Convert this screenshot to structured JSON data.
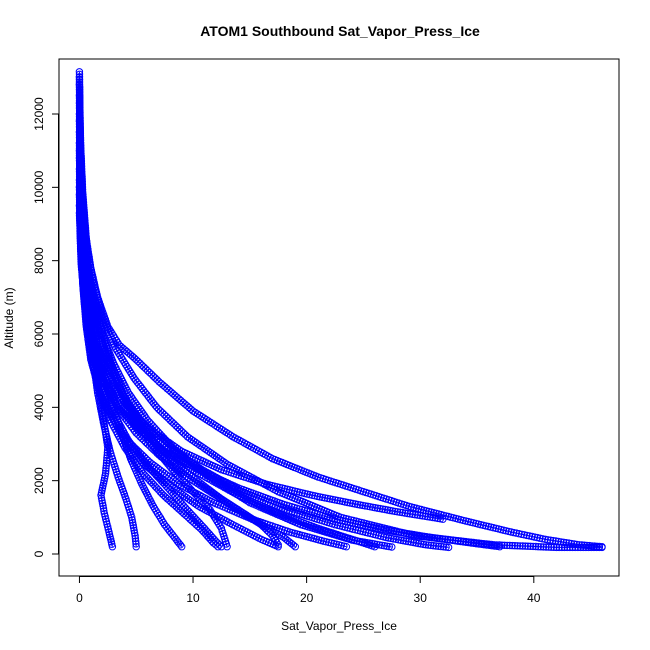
{
  "chart_data": {
    "type": "scatter",
    "title": "ATOM1 Southbound Sat_Vapor_Press_Ice",
    "xlabel": "Sat_Vapor_Press_Ice",
    "ylabel": "Altitude (m)",
    "xlim": [
      -1.8,
      47.5
    ],
    "ylim": [
      -600,
      13500
    ],
    "xticks": [
      0,
      10,
      20,
      30,
      40
    ],
    "yticks": [
      0,
      2000,
      4000,
      6000,
      8000,
      10000,
      12000
    ],
    "grid": false,
    "marker": "open-circle",
    "color": "#0000ff",
    "series": [
      {
        "points": [
          [
            0.0,
            13150
          ],
          [
            0.02,
            12400
          ],
          [
            0.05,
            11400
          ],
          [
            0.12,
            10200
          ],
          [
            0.25,
            9200
          ],
          [
            0.45,
            8300
          ],
          [
            0.8,
            7500
          ],
          [
            1.3,
            6800
          ],
          [
            2.0,
            6000
          ],
          [
            3.0,
            5200
          ],
          [
            4.3,
            4400
          ],
          [
            6.0,
            3650
          ],
          [
            8.2,
            2900
          ],
          [
            11.2,
            2150
          ],
          [
            15.0,
            1400
          ],
          [
            19.5,
            800
          ],
          [
            24.0,
            380
          ],
          [
            27.5,
            190
          ]
        ]
      },
      {
        "points": [
          [
            0.0,
            13000
          ],
          [
            0.05,
            11800
          ],
          [
            0.15,
            10500
          ],
          [
            0.35,
            9300
          ],
          [
            0.7,
            8300
          ],
          [
            1.2,
            7400
          ],
          [
            2.0,
            6500
          ],
          [
            3.2,
            5600
          ],
          [
            4.8,
            4800
          ],
          [
            6.8,
            4000
          ],
          [
            9.5,
            3200
          ],
          [
            13.0,
            2450
          ],
          [
            17.5,
            1700
          ],
          [
            23.0,
            1000
          ],
          [
            29.5,
            500
          ],
          [
            36.5,
            250
          ],
          [
            42.0,
            180
          ],
          [
            46.0,
            180
          ]
        ]
      },
      {
        "points": [
          [
            0.0,
            12800
          ],
          [
            0.1,
            11200
          ],
          [
            0.3,
            9800
          ],
          [
            0.6,
            8600
          ],
          [
            1.0,
            7800
          ],
          [
            1.6,
            7000
          ],
          [
            2.5,
            6200
          ],
          [
            3.5,
            5700
          ],
          [
            5.0,
            5300
          ],
          [
            7.0,
            4700
          ],
          [
            10.0,
            3900
          ],
          [
            13.5,
            3200
          ],
          [
            17.0,
            2600
          ],
          [
            21.0,
            2100
          ],
          [
            25.0,
            1700
          ],
          [
            29.0,
            1300
          ],
          [
            34.0,
            900
          ],
          [
            38.0,
            600
          ],
          [
            41.0,
            400
          ],
          [
            44.0,
            250
          ],
          [
            46.0,
            200
          ]
        ]
      },
      {
        "points": [
          [
            0.0,
            12500
          ],
          [
            0.1,
            10800
          ],
          [
            0.3,
            9400
          ],
          [
            0.6,
            8200
          ],
          [
            1.0,
            7200
          ],
          [
            1.6,
            6300
          ],
          [
            2.4,
            5400
          ],
          [
            3.4,
            4600
          ],
          [
            4.7,
            3800
          ],
          [
            6.3,
            3000
          ],
          [
            8.2,
            2300
          ],
          [
            10.0,
            1700
          ],
          [
            11.5,
            1200
          ],
          [
            12.5,
            700
          ],
          [
            13.0,
            200
          ]
        ]
      },
      {
        "points": [
          [
            0.0,
            12300
          ],
          [
            0.08,
            11000
          ],
          [
            0.25,
            9600
          ],
          [
            0.55,
            8500
          ],
          [
            0.9,
            7600
          ],
          [
            1.4,
            6800
          ],
          [
            2.0,
            6000
          ],
          [
            2.8,
            5200
          ],
          [
            3.8,
            4400
          ],
          [
            5.2,
            3600
          ],
          [
            7.0,
            2900
          ],
          [
            9.5,
            2200
          ],
          [
            12.5,
            1500
          ],
          [
            15.5,
            900
          ],
          [
            18.0,
            450
          ],
          [
            19.0,
            200
          ]
        ]
      },
      {
        "points": [
          [
            0.0,
            12000
          ],
          [
            0.1,
            10400
          ],
          [
            0.3,
            9000
          ],
          [
            0.6,
            7800
          ],
          [
            1.0,
            6800
          ],
          [
            1.5,
            5800
          ],
          [
            2.1,
            5000
          ],
          [
            2.8,
            4200
          ],
          [
            3.6,
            3400
          ],
          [
            4.5,
            2600
          ],
          [
            5.5,
            1900
          ],
          [
            6.5,
            1300
          ],
          [
            7.5,
            800
          ],
          [
            8.5,
            400
          ],
          [
            9.0,
            200
          ]
        ]
      },
      {
        "points": [
          [
            0.0,
            11800
          ],
          [
            0.1,
            10000
          ],
          [
            0.3,
            8600
          ],
          [
            0.6,
            7400
          ],
          [
            0.9,
            6400
          ],
          [
            1.3,
            5400
          ],
          [
            1.7,
            4500
          ],
          [
            2.1,
            3700
          ],
          [
            2.5,
            2900
          ],
          [
            2.3,
            2200
          ],
          [
            1.9,
            1600
          ],
          [
            2.2,
            1100
          ],
          [
            2.6,
            600
          ],
          [
            2.9,
            200
          ]
        ]
      },
      {
        "points": [
          [
            0.0,
            11500
          ],
          [
            0.1,
            9800
          ],
          [
            0.3,
            8400
          ],
          [
            0.55,
            7200
          ],
          [
            0.85,
            6200
          ],
          [
            1.2,
            5300
          ],
          [
            1.6,
            4400
          ],
          [
            2.1,
            3600
          ],
          [
            2.7,
            2800
          ],
          [
            3.4,
            2100
          ],
          [
            4.1,
            1500
          ],
          [
            4.6,
            1000
          ],
          [
            4.9,
            500
          ],
          [
            5.0,
            200
          ]
        ]
      },
      {
        "points": [
          [
            0.0,
            11200
          ],
          [
            0.1,
            9600
          ],
          [
            0.3,
            8200
          ],
          [
            0.6,
            7000
          ],
          [
            1.0,
            5900
          ],
          [
            1.6,
            4900
          ],
          [
            2.5,
            4000
          ],
          [
            3.8,
            3200
          ],
          [
            5.5,
            2500
          ],
          [
            7.8,
            1900
          ],
          [
            10.5,
            1300
          ],
          [
            13.5,
            800
          ],
          [
            16.0,
            400
          ],
          [
            17.5,
            200
          ]
        ]
      },
      {
        "points": [
          [
            0.0,
            11000
          ],
          [
            0.1,
            9400
          ],
          [
            0.3,
            8000
          ],
          [
            0.7,
            6800
          ],
          [
            1.2,
            5800
          ],
          [
            2.0,
            5000
          ],
          [
            3.2,
            4200
          ],
          [
            5.0,
            3500
          ],
          [
            7.5,
            2800
          ],
          [
            10.5,
            2200
          ],
          [
            14.0,
            1600
          ],
          [
            17.5,
            1100
          ],
          [
            21.0,
            700
          ],
          [
            24.0,
            400
          ],
          [
            26.0,
            200
          ]
        ]
      },
      {
        "points": [
          [
            0.0,
            10800
          ],
          [
            0.15,
            9200
          ],
          [
            0.4,
            7900
          ],
          [
            0.8,
            6800
          ],
          [
            1.4,
            5900
          ],
          [
            2.3,
            5100
          ],
          [
            3.6,
            4300
          ],
          [
            5.4,
            3600
          ],
          [
            7.8,
            2900
          ],
          [
            10.8,
            2300
          ],
          [
            14.3,
            1700
          ],
          [
            18.3,
            1200
          ],
          [
            22.5,
            800
          ],
          [
            27.0,
            450
          ],
          [
            30.5,
            250
          ],
          [
            32.5,
            180
          ]
        ]
      },
      {
        "points": [
          [
            0.0,
            10500
          ],
          [
            0.12,
            9000
          ],
          [
            0.35,
            7700
          ],
          [
            0.7,
            6600
          ],
          [
            1.2,
            5600
          ],
          [
            1.9,
            4700
          ],
          [
            2.9,
            3900
          ],
          [
            4.3,
            3100
          ],
          [
            6.0,
            2400
          ],
          [
            7.8,
            1800
          ],
          [
            9.5,
            1200
          ],
          [
            11.0,
            700
          ],
          [
            12.0,
            350
          ],
          [
            12.5,
            200
          ]
        ]
      },
      {
        "points": [
          [
            0.0,
            10200
          ],
          [
            0.1,
            8800
          ],
          [
            0.3,
            7500
          ],
          [
            0.65,
            6300
          ],
          [
            1.1,
            5300
          ],
          [
            1.8,
            4400
          ],
          [
            2.8,
            3600
          ],
          [
            4.0,
            2900
          ],
          [
            5.6,
            2200
          ],
          [
            7.4,
            1600
          ],
          [
            9.2,
            1100
          ],
          [
            10.8,
            650
          ],
          [
            11.8,
            300
          ],
          [
            12.2,
            200
          ]
        ]
      },
      {
        "points": [
          [
            0.0,
            10000
          ],
          [
            0.1,
            8600
          ],
          [
            0.3,
            7300
          ],
          [
            0.6,
            6200
          ],
          [
            1.0,
            5300
          ],
          [
            1.7,
            4500
          ],
          [
            2.7,
            3800
          ],
          [
            4.2,
            3100
          ],
          [
            6.2,
            2500
          ],
          [
            8.8,
            1900
          ],
          [
            11.8,
            1400
          ],
          [
            15.2,
            950
          ],
          [
            18.5,
            600
          ],
          [
            21.5,
            350
          ],
          [
            23.5,
            200
          ]
        ]
      },
      {
        "points": [
          [
            0.0,
            9800
          ],
          [
            0.1,
            8400
          ],
          [
            0.35,
            7200
          ],
          [
            0.75,
            6200
          ],
          [
            1.3,
            5400
          ],
          [
            2.2,
            4700
          ],
          [
            3.4,
            4000
          ],
          [
            5.2,
            3400
          ],
          [
            7.5,
            2800
          ],
          [
            10.5,
            2300
          ],
          [
            14.0,
            1800
          ],
          [
            18.0,
            1350
          ],
          [
            22.5,
            950
          ],
          [
            27.0,
            650
          ],
          [
            31.0,
            450
          ],
          [
            34.5,
            300
          ],
          [
            37.0,
            200
          ]
        ]
      },
      {
        "points": [
          [
            0.0,
            9500
          ],
          [
            0.2,
            8000
          ],
          [
            0.6,
            6800
          ],
          [
            1.3,
            5800
          ],
          [
            2.4,
            4900
          ],
          [
            4.0,
            4100
          ],
          [
            6.2,
            3400
          ],
          [
            9.0,
            2800
          ],
          [
            12.5,
            2300
          ],
          [
            16.5,
            1900
          ],
          [
            20.5,
            1600
          ],
          [
            24.5,
            1350
          ],
          [
            28.0,
            1150
          ],
          [
            32.0,
            950
          ]
        ]
      },
      {
        "points": [
          [
            0.0,
            9300
          ],
          [
            0.15,
            7900
          ],
          [
            0.5,
            6700
          ],
          [
            1.1,
            5700
          ],
          [
            2.0,
            4800
          ],
          [
            3.3,
            4000
          ],
          [
            5.0,
            3300
          ],
          [
            7.0,
            2700
          ],
          [
            9.0,
            2200
          ],
          [
            11.0,
            1800
          ],
          [
            13.0,
            1400
          ],
          [
            14.5,
            1100
          ],
          [
            16.0,
            800
          ],
          [
            17.0,
            500
          ],
          [
            17.5,
            250
          ]
        ]
      }
    ]
  }
}
